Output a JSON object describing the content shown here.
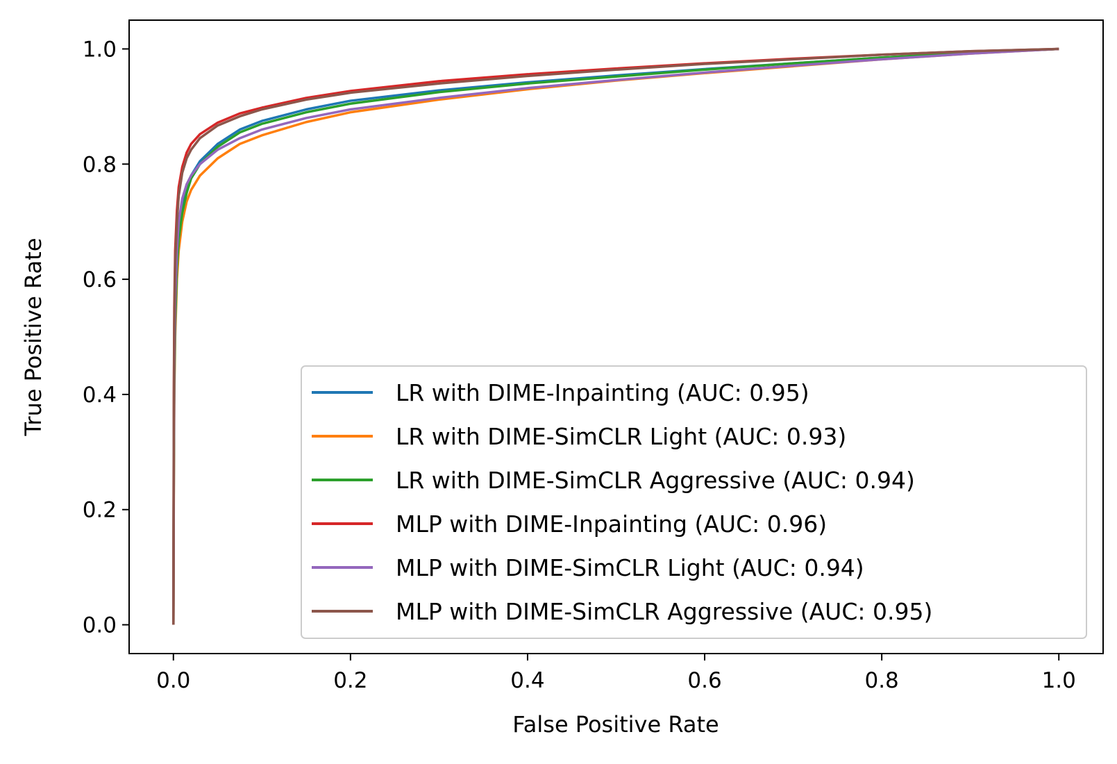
{
  "chart_data": {
    "type": "line",
    "xlabel": "False Positive Rate",
    "ylabel": "True Positive Rate",
    "xlim": [
      -0.05,
      1.05
    ],
    "ylim": [
      -0.05,
      1.05
    ],
    "xticks": [
      0.0,
      0.2,
      0.4,
      0.6,
      0.8,
      1.0
    ],
    "yticks": [
      0.0,
      0.2,
      0.4,
      0.6,
      0.8,
      1.0
    ],
    "xtick_labels": [
      "0.0",
      "0.2",
      "0.4",
      "0.6",
      "0.8",
      "1.0"
    ],
    "ytick_labels": [
      "0.0",
      "0.2",
      "0.4",
      "0.6",
      "0.8",
      "1.0"
    ],
    "grid": false,
    "legend_position": "lower-right",
    "series": [
      {
        "name": "LR with DIME-Inpainting (AUC: 0.95)",
        "color": "#1f77b4",
        "points": [
          [
            0,
            0
          ],
          [
            0.0005,
            0.3
          ],
          [
            0.001,
            0.45
          ],
          [
            0.002,
            0.55
          ],
          [
            0.004,
            0.63
          ],
          [
            0.006,
            0.68
          ],
          [
            0.01,
            0.73
          ],
          [
            0.015,
            0.76
          ],
          [
            0.02,
            0.78
          ],
          [
            0.03,
            0.805
          ],
          [
            0.05,
            0.835
          ],
          [
            0.075,
            0.86
          ],
          [
            0.1,
            0.875
          ],
          [
            0.15,
            0.895
          ],
          [
            0.2,
            0.91
          ],
          [
            0.3,
            0.928
          ],
          [
            0.4,
            0.942
          ],
          [
            0.5,
            0.954
          ],
          [
            0.6,
            0.965
          ],
          [
            0.7,
            0.975
          ],
          [
            0.8,
            0.985
          ],
          [
            0.9,
            0.993
          ],
          [
            1.0,
            1.0
          ]
        ]
      },
      {
        "name": "LR with DIME-SimCLR Light (AUC: 0.93)",
        "color": "#ff7f0e",
        "points": [
          [
            0,
            0
          ],
          [
            0.0005,
            0.25
          ],
          [
            0.001,
            0.4
          ],
          [
            0.002,
            0.5
          ],
          [
            0.004,
            0.6
          ],
          [
            0.006,
            0.65
          ],
          [
            0.01,
            0.7
          ],
          [
            0.015,
            0.735
          ],
          [
            0.02,
            0.755
          ],
          [
            0.03,
            0.78
          ],
          [
            0.05,
            0.81
          ],
          [
            0.075,
            0.835
          ],
          [
            0.1,
            0.85
          ],
          [
            0.15,
            0.873
          ],
          [
            0.2,
            0.89
          ],
          [
            0.3,
            0.912
          ],
          [
            0.4,
            0.93
          ],
          [
            0.5,
            0.945
          ],
          [
            0.6,
            0.958
          ],
          [
            0.7,
            0.97
          ],
          [
            0.8,
            0.982
          ],
          [
            0.9,
            0.992
          ],
          [
            1.0,
            1.0
          ]
        ]
      },
      {
        "name": "LR with DIME-SimCLR Aggressive (AUC: 0.94)",
        "color": "#2ca02c",
        "points": [
          [
            0,
            0
          ],
          [
            0.0005,
            0.28
          ],
          [
            0.001,
            0.42
          ],
          [
            0.002,
            0.52
          ],
          [
            0.004,
            0.62
          ],
          [
            0.006,
            0.67
          ],
          [
            0.01,
            0.715
          ],
          [
            0.015,
            0.75
          ],
          [
            0.02,
            0.775
          ],
          [
            0.03,
            0.8
          ],
          [
            0.05,
            0.83
          ],
          [
            0.075,
            0.855
          ],
          [
            0.1,
            0.87
          ],
          [
            0.15,
            0.89
          ],
          [
            0.2,
            0.905
          ],
          [
            0.3,
            0.925
          ],
          [
            0.4,
            0.94
          ],
          [
            0.5,
            0.952
          ],
          [
            0.6,
            0.964
          ],
          [
            0.7,
            0.975
          ],
          [
            0.8,
            0.985
          ],
          [
            0.9,
            0.993
          ],
          [
            1.0,
            1.0
          ]
        ]
      },
      {
        "name": "MLP with DIME-Inpainting (AUC: 0.96)",
        "color": "#d62728",
        "points": [
          [
            0,
            0
          ],
          [
            0.0005,
            0.4
          ],
          [
            0.001,
            0.55
          ],
          [
            0.002,
            0.65
          ],
          [
            0.004,
            0.72
          ],
          [
            0.006,
            0.76
          ],
          [
            0.01,
            0.795
          ],
          [
            0.015,
            0.82
          ],
          [
            0.02,
            0.835
          ],
          [
            0.03,
            0.852
          ],
          [
            0.05,
            0.872
          ],
          [
            0.075,
            0.888
          ],
          [
            0.1,
            0.898
          ],
          [
            0.15,
            0.915
          ],
          [
            0.2,
            0.927
          ],
          [
            0.3,
            0.944
          ],
          [
            0.4,
            0.956
          ],
          [
            0.5,
            0.966
          ],
          [
            0.6,
            0.975
          ],
          [
            0.7,
            0.983
          ],
          [
            0.8,
            0.99
          ],
          [
            0.9,
            0.996
          ],
          [
            1.0,
            1.0
          ]
        ]
      },
      {
        "name": "MLP with DIME-SimCLR Light (AUC: 0.94)",
        "color": "#9467bd",
        "points": [
          [
            0,
            0
          ],
          [
            0.0005,
            0.3
          ],
          [
            0.001,
            0.45
          ],
          [
            0.002,
            0.56
          ],
          [
            0.004,
            0.65
          ],
          [
            0.006,
            0.7
          ],
          [
            0.01,
            0.74
          ],
          [
            0.015,
            0.765
          ],
          [
            0.02,
            0.78
          ],
          [
            0.03,
            0.8
          ],
          [
            0.05,
            0.825
          ],
          [
            0.075,
            0.845
          ],
          [
            0.1,
            0.86
          ],
          [
            0.15,
            0.88
          ],
          [
            0.2,
            0.895
          ],
          [
            0.3,
            0.915
          ],
          [
            0.4,
            0.932
          ],
          [
            0.5,
            0.946
          ],
          [
            0.6,
            0.959
          ],
          [
            0.7,
            0.971
          ],
          [
            0.8,
            0.982
          ],
          [
            0.9,
            0.992
          ],
          [
            1.0,
            1.0
          ]
        ]
      },
      {
        "name": "MLP with DIME-SimCLR Aggressive (AUC: 0.95)",
        "color": "#8c564b",
        "points": [
          [
            0,
            0
          ],
          [
            0.0005,
            0.38
          ],
          [
            0.001,
            0.52
          ],
          [
            0.002,
            0.63
          ],
          [
            0.004,
            0.7
          ],
          [
            0.006,
            0.745
          ],
          [
            0.01,
            0.785
          ],
          [
            0.015,
            0.81
          ],
          [
            0.02,
            0.825
          ],
          [
            0.03,
            0.845
          ],
          [
            0.05,
            0.867
          ],
          [
            0.075,
            0.883
          ],
          [
            0.1,
            0.895
          ],
          [
            0.15,
            0.912
          ],
          [
            0.2,
            0.924
          ],
          [
            0.3,
            0.94
          ],
          [
            0.4,
            0.953
          ],
          [
            0.5,
            0.964
          ],
          [
            0.6,
            0.974
          ],
          [
            0.7,
            0.982
          ],
          [
            0.8,
            0.99
          ],
          [
            0.9,
            0.996
          ],
          [
            1.0,
            1.0
          ]
        ]
      }
    ]
  }
}
